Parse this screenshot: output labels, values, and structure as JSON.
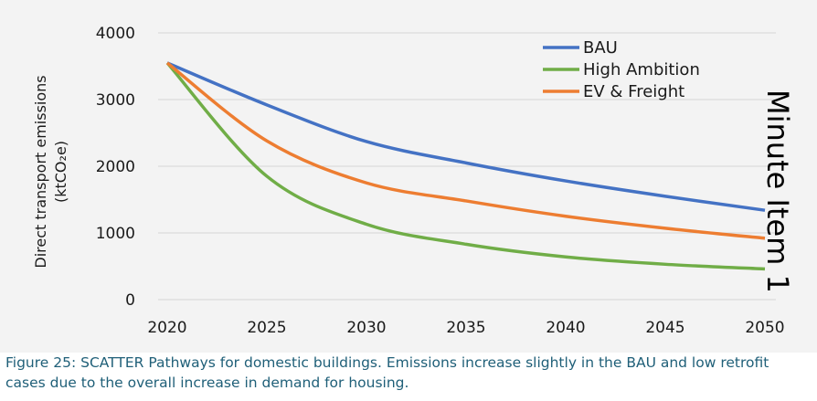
{
  "chart_data": {
    "type": "line",
    "title": "",
    "xlabel": "",
    "ylabel_line1": "Direct transport emissions",
    "ylabel_line2": "(ktCO₂e)",
    "x": [
      2020,
      2025,
      2030,
      2035,
      2040,
      2045,
      2050
    ],
    "x_ticks": [
      "2020",
      "2025",
      "2030",
      "2035",
      "2040",
      "2045",
      "2050"
    ],
    "y_ticks": [
      "0",
      "1000",
      "2000",
      "3000",
      "4000"
    ],
    "xlim": [
      2020,
      2050
    ],
    "ylim": [
      0,
      4000
    ],
    "grid": "horizontal",
    "legend_position": "top-right",
    "series": [
      {
        "name": "BAU",
        "color": "#4472c4",
        "values": [
          3550,
          2920,
          2370,
          2050,
          1780,
          1550,
          1340
        ]
      },
      {
        "name": "High Ambition",
        "color": "#70ad47",
        "values": [
          3550,
          1850,
          1130,
          830,
          640,
          530,
          460
        ]
      },
      {
        "name": "EV & Freight",
        "color": "#ed7d31",
        "values": [
          3550,
          2380,
          1750,
          1480,
          1250,
          1070,
          920
        ]
      }
    ]
  },
  "side_annotation": "Minute Item 1",
  "caption": "Figure 25: SCATTER Pathways for domestic buildings. Emissions increase slightly in the BAU and low retrofit cases due to the overall increase in demand for housing."
}
